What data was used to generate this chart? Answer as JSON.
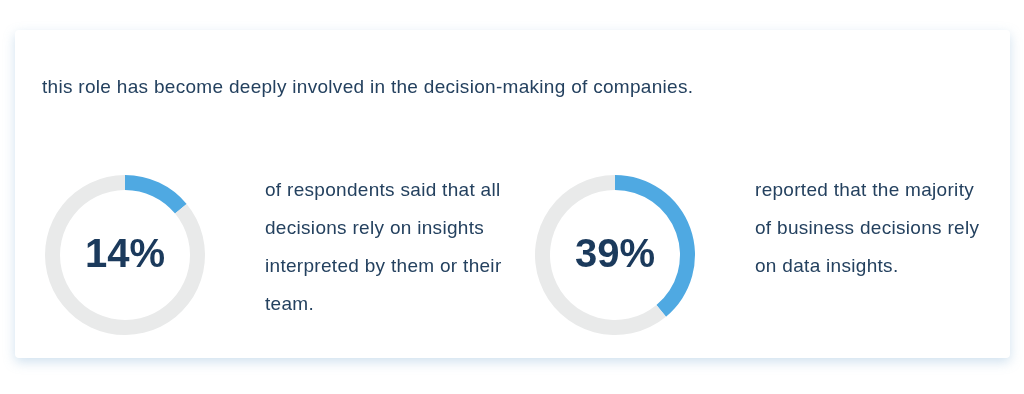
{
  "chart_data": [
    {
      "type": "other",
      "title": "this role has become deeply involved in the decision-making of companies."
    },
    {
      "type": "donut",
      "categories": [
        null,
        null
      ],
      "values": [
        14,
        86
      ],
      "colors": [
        "#4fa9e2",
        "#e9eaea"
      ],
      "value_labels": [
        "14%",
        null
      ],
      "annotations": [
        "of respondents said that all decisions rely on insights interpreted by them or their team."
      ]
    },
    {
      "type": "donut",
      "categories": [
        null,
        null
      ],
      "values": [
        39,
        61
      ],
      "colors": [
        "#4fa9e2",
        "#e9eaea"
      ],
      "value_labels": [
        "39%",
        null
      ],
      "annotations": [
        "reported that the majority of business decisions rely on data insights."
      ]
    }
  ]
}
